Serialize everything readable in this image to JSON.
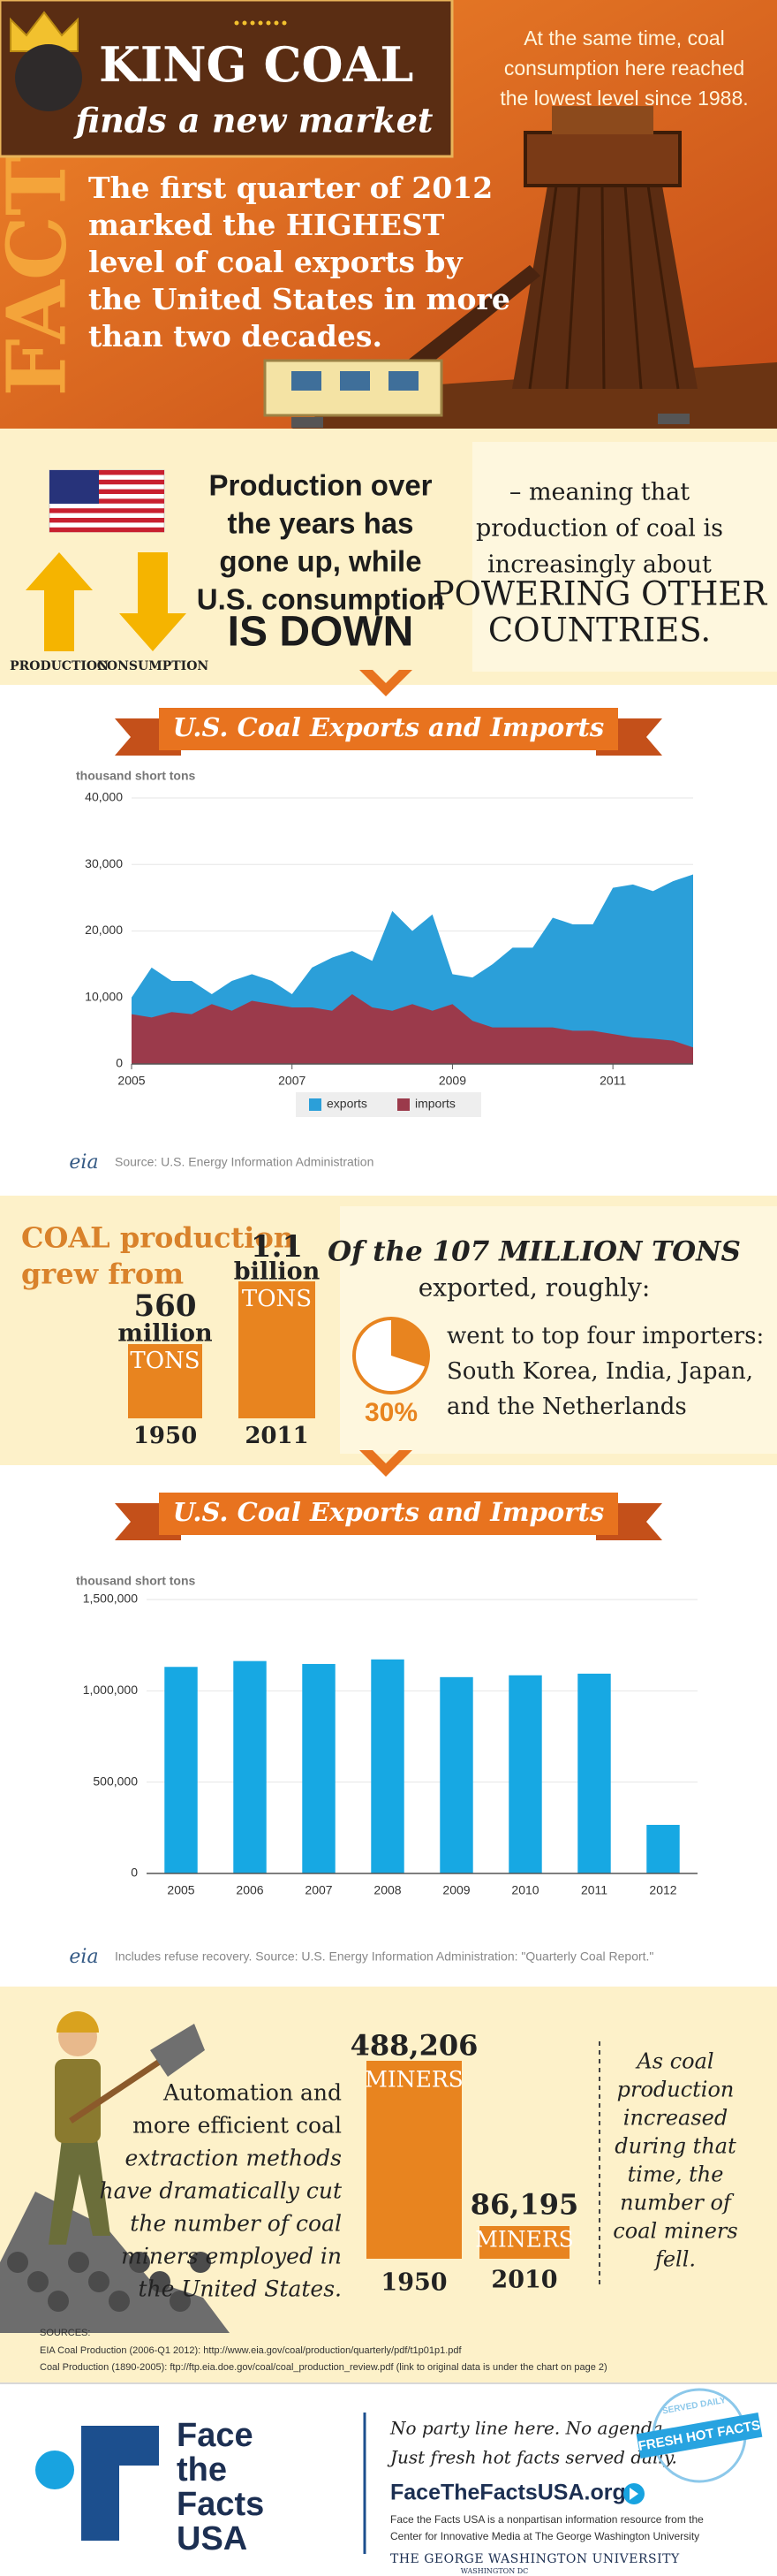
{
  "header": {
    "fact": "FACT",
    "title": "KING COAL",
    "subtitle": "finds a new market",
    "side_note": [
      "At the same time, coal",
      "consumption here reached",
      "the lowest level since 1988."
    ],
    "fact_text": [
      "The first quarter of 2012",
      "marked the HIGHEST",
      "level of coal exports by",
      "the United States in more",
      "than two decades."
    ]
  },
  "trend": {
    "arrow_labels": [
      "PRODUCTION",
      "CONSUMPTION"
    ],
    "statement": [
      "Production over",
      "the years has",
      "gone up, while",
      "U.S. consumption"
    ],
    "emphasis": "IS DOWN",
    "conclusion": [
      "– meaning that",
      "production of coal is",
      "increasingly about"
    ],
    "conclusion_emphasis": [
      "POWERING OTHER",
      "COUNTRIES."
    ]
  },
  "chart_data": [
    {
      "type": "area",
      "title": "U.S. Coal Exports and Imports",
      "y_label": "thousand short tons",
      "x": [
        2005,
        2005.25,
        2005.5,
        2005.75,
        2006,
        2006.25,
        2006.5,
        2006.75,
        2007,
        2007.25,
        2007.5,
        2007.75,
        2008,
        2008.25,
        2008.5,
        2008.75,
        2009,
        2009.25,
        2009.5,
        2009.75,
        2010,
        2010.25,
        2010.5,
        2010.75,
        2011,
        2011.25,
        2011.5,
        2011.75,
        2012
      ],
      "series": [
        {
          "name": "exports",
          "color": "#2b9fd9",
          "values": [
            10000,
            14500,
            12500,
            12500,
            10500,
            12500,
            13500,
            12500,
            10500,
            14500,
            16000,
            17000,
            15500,
            23000,
            20000,
            22500,
            13500,
            13000,
            15000,
            17500,
            17500,
            22000,
            21000,
            21000,
            26500,
            27000,
            26000,
            27500,
            28500
          ]
        },
        {
          "name": "imports",
          "color": "#9b3a4b",
          "values": [
            7500,
            7000,
            7800,
            7500,
            9000,
            8000,
            9500,
            9000,
            8500,
            8500,
            8000,
            10500,
            8500,
            8000,
            9000,
            8000,
            9000,
            6500,
            5500,
            5500,
            5500,
            5500,
            5000,
            5000,
            4500,
            4000,
            3800,
            3500,
            2500
          ]
        }
      ],
      "xlim": [
        2005,
        2012
      ],
      "xticks": [
        2005,
        2007,
        2009,
        2011
      ],
      "ylim": [
        0,
        40000
      ],
      "yticks": [
        0,
        {
          "value": 10000,
          "label": "10,000"
        },
        {
          "value": 20000,
          "label": "20,000"
        },
        {
          "value": 30000,
          "label": "30,000"
        },
        {
          "value": 40000,
          "label": "40,000"
        }
      ],
      "grid": true,
      "legend": "bottom",
      "logo": "eia",
      "source": "Source: U.S. Energy Information Administration"
    },
    {
      "type": "bar",
      "title": "U.S. Coal Exports and Imports",
      "y_label": "thousand short tons",
      "categories": [
        "2005",
        "2006",
        "2007",
        "2008",
        "2009",
        "2010",
        "2011",
        "2012"
      ],
      "values": [
        1131000,
        1163000,
        1147000,
        1172000,
        1075000,
        1085000,
        1094000,
        266000
      ],
      "color": "#17a8e3",
      "ylim": [
        0,
        1500000
      ],
      "yticks": [
        0,
        {
          "value": 500000,
          "label": "500,000"
        },
        {
          "value": 1000000,
          "label": "1,000,000"
        },
        {
          "value": 1500000,
          "label": "1,500,000"
        }
      ],
      "grid": true,
      "logo": "eia",
      "source": "Includes refuse recovery. Source: U.S. Energy Information Administration: \"Quarterly Coal Report.\""
    }
  ],
  "production": {
    "heading": [
      "COAL production",
      "grew from"
    ],
    "bars": [
      {
        "amount": "560",
        "unit": "million",
        "label": "TONS",
        "year": "1950"
      },
      {
        "amount": "1.1",
        "unit": "billion",
        "label": "TONS",
        "year": "2011"
      }
    ]
  },
  "exports": {
    "heading": [
      "Of the 107 MILLION TONS",
      "exported, roughly:"
    ],
    "share": "30%",
    "destination": [
      "went to top four importers:",
      "South Korea, India, Japan,",
      "and the Netherlands"
    ]
  },
  "miners": {
    "text": [
      "Automation and",
      "more efficient coal",
      "extraction methods",
      "have dramatically cut",
      "the number of coal",
      "miners employed in",
      "the United States."
    ],
    "bars": [
      {
        "count": "488,206",
        "label": "MINERS",
        "year": "1950"
      },
      {
        "count": "86,195",
        "label": "MINERS",
        "year": "2010"
      }
    ],
    "note": [
      "As coal",
      "production",
      "increased",
      "during that",
      "time, the",
      "number of",
      "coal miners",
      "fell."
    ]
  },
  "sources": {
    "heading": "SOURCES:",
    "items": [
      "EIA Coal Production (2006-Q1 2012): http://www.eia.gov/coal/production/quarterly/pdf/t1p01p1.pdf",
      "Coal Production (1890-2005): ftp://ftp.eia.doe.gov/coal/coal_production_review.pdf (link to original data is under the chart on page 2)"
    ]
  },
  "footer": {
    "logo": [
      "Face",
      "the",
      "Facts",
      "USA"
    ],
    "tagline": [
      "No party line here. No agenda.",
      "Just fresh hot facts served daily."
    ],
    "url": "FaceTheFactsUSA.org",
    "description": [
      "Face the Facts USA is a nonpartisan information resource from the",
      "Center for Innovative Media at The George Washington University"
    ],
    "university": "THE GEORGE WASHINGTON UNIVERSITY",
    "city": "WASHINGTON DC",
    "stamp": {
      "band": "FRESH HOT FACTS",
      "ring": "SERVED DAILY"
    }
  }
}
